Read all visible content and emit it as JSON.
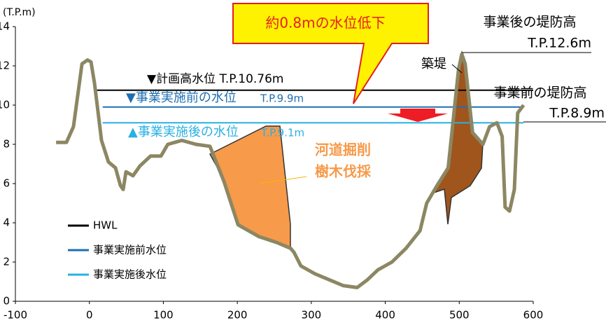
{
  "chart_data": {
    "type": "line",
    "ylabel": "(T.P.m)",
    "xlim": [
      -100,
      600
    ],
    "xticks": [
      -100,
      0,
      100,
      200,
      300,
      400,
      500,
      600
    ],
    "ylim": [
      0,
      14
    ],
    "yticks": [
      0,
      2,
      4,
      6,
      8,
      10,
      12,
      14
    ],
    "profile": {
      "color": "#8c8763",
      "x": [
        -45,
        -31,
        -21.5,
        -15,
        -10,
        -2.6,
        2.2,
        7,
        16.4,
        25.8,
        35.3,
        42,
        45.7,
        49.5,
        59,
        68.4,
        82.6,
        96.8,
        106,
        125,
        144,
        163,
        182,
        201,
        229,
        253,
        272,
        276.5,
        286,
        305,
        324,
        343,
        362,
        376,
        390,
        409,
        428,
        447,
        456,
        470,
        485,
        499,
        503.5,
        508,
        518,
        532,
        541,
        551,
        558,
        562,
        568,
        574.5,
        579,
        587
      ],
      "values": [
        8.1,
        8.1,
        8.9,
        10.7,
        12.1,
        12.3,
        12.2,
        11.1,
        8.2,
        7.1,
        6.8,
        5.9,
        5.7,
        6.6,
        6.4,
        6.9,
        7.4,
        7.4,
        8.0,
        8.2,
        8.0,
        7.9,
        6.1,
        3.9,
        3.3,
        3.0,
        2.7,
        2.5,
        1.8,
        1.4,
        1.1,
        0.8,
        0.7,
        1.1,
        1.6,
        2.0,
        2.7,
        3.6,
        5.0,
        5.9,
        6.8,
        11.8,
        12.6,
        12.1,
        8.6,
        8.0,
        8.9,
        9.1,
        8.4,
        4.8,
        4.6,
        5.7,
        9.6,
        10.0
      ]
    },
    "series": [
      {
        "name": "HWL",
        "color": "#000000",
        "x": [
          9,
          600
        ],
        "values": [
          10.76,
          10.76
        ]
      },
      {
        "name": "事業実施前水位",
        "color": "#1f6fb2",
        "x": [
          18,
          587
        ],
        "values": [
          9.9,
          9.9
        ]
      },
      {
        "name": "事業実施後水位",
        "color": "#29b0e3",
        "x": [
          18,
          587
        ],
        "values": [
          9.1,
          9.1
        ]
      }
    ],
    "annotations": {
      "callout": "約0.8mの水位低下",
      "after_levee": "事業後の堤防高",
      "after_levee_tp": "T.P.12.6m",
      "levee": "築堤",
      "before_levee": "事業前の堤防高",
      "before_levee_tp": "T.P.8.9m",
      "hwl": "▼計画高水位 T.P.10.76m",
      "before_level": "▼事業実施前の水位",
      "before_level_tp": "T.P.9.9m",
      "after_level": "▲事業実施後の水位",
      "after_level_tp": "T.P.9.1m",
      "dredge": "河道掘削",
      "trees": "樹木伐採"
    }
  }
}
